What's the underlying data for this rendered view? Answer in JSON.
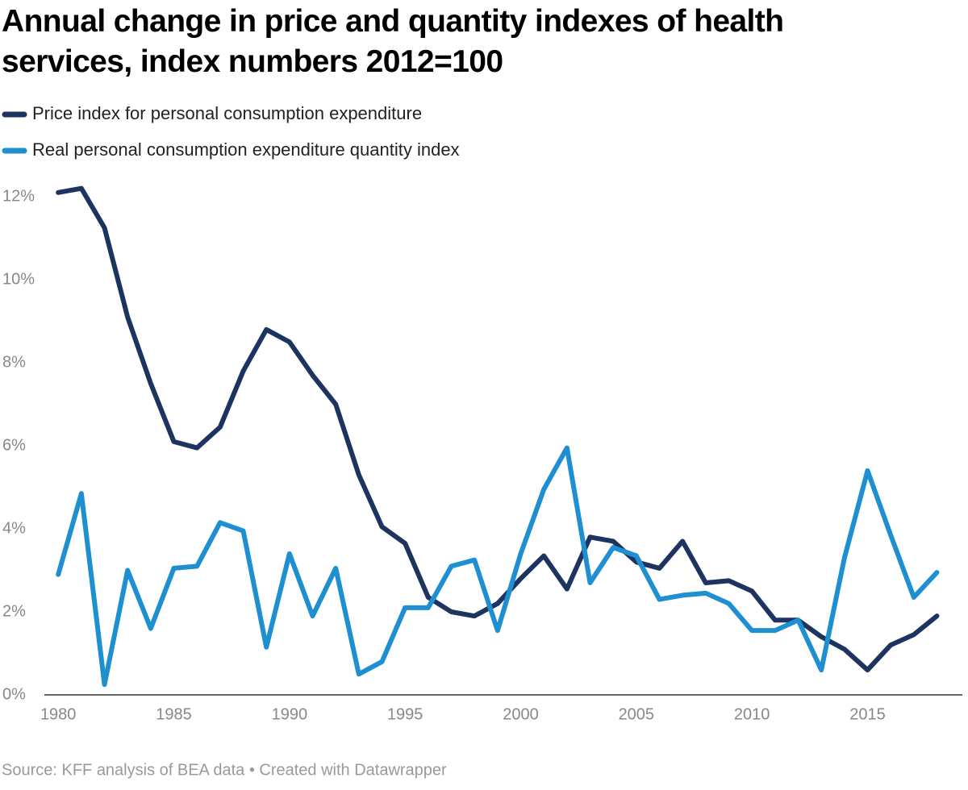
{
  "chart_data": {
    "type": "line",
    "title": "Annual change in price and quantity indexes of health services, index numbers 2012=100",
    "source": "Source: KFF analysis of BEA data • Created with Datawrapper",
    "x": [
      1980,
      1981,
      1982,
      1983,
      1984,
      1985,
      1986,
      1987,
      1988,
      1989,
      1990,
      1991,
      1992,
      1993,
      1994,
      1995,
      1996,
      1997,
      1998,
      1999,
      2000,
      2001,
      2002,
      2003,
      2004,
      2005,
      2006,
      2007,
      2008,
      2009,
      2010,
      2011,
      2012,
      2013,
      2014,
      2015,
      2016,
      2017,
      2018
    ],
    "series": [
      {
        "name": "Price index for personal consumption expenditure",
        "color": "#1d3461",
        "values": [
          12.1,
          12.2,
          11.25,
          9.1,
          7.5,
          6.1,
          5.95,
          6.45,
          7.8,
          8.8,
          8.5,
          7.7,
          7.0,
          5.3,
          4.05,
          3.65,
          2.35,
          2.0,
          1.9,
          2.2,
          2.8,
          3.35,
          2.55,
          3.8,
          3.7,
          3.2,
          3.05,
          3.7,
          2.7,
          2.75,
          2.5,
          1.8,
          1.8,
          1.4,
          1.1,
          0.6,
          1.2,
          1.45,
          1.9
        ]
      },
      {
        "name": "Real personal consumption expenditure quantity index",
        "color": "#1e8fd0",
        "values": [
          2.9,
          4.85,
          0.25,
          3.0,
          1.6,
          3.05,
          3.1,
          4.15,
          3.95,
          1.15,
          3.4,
          1.9,
          3.05,
          0.5,
          0.8,
          2.1,
          2.1,
          3.1,
          3.25,
          1.55,
          3.4,
          4.95,
          5.95,
          2.7,
          3.55,
          3.35,
          2.3,
          2.4,
          2.45,
          2.2,
          1.55,
          1.55,
          1.8,
          0.6,
          3.3,
          5.4,
          3.85,
          2.35,
          2.95
        ]
      }
    ],
    "xlim": [
      1979.4,
      2019.1
    ],
    "xticks": [
      1980,
      1985,
      1990,
      1995,
      2000,
      2005,
      2010,
      2015
    ],
    "ylim": [
      0,
      12
    ],
    "yticks": [
      {
        "value": 0,
        "label": "0%"
      },
      {
        "value": 2,
        "label": "2%"
      },
      {
        "value": 4,
        "label": "4%"
      },
      {
        "value": 6,
        "label": "6%"
      },
      {
        "value": 8,
        "label": "8%"
      },
      {
        "value": 10,
        "label": "10%"
      },
      {
        "value": 12,
        "label": "12%"
      }
    ],
    "grid": false
  }
}
